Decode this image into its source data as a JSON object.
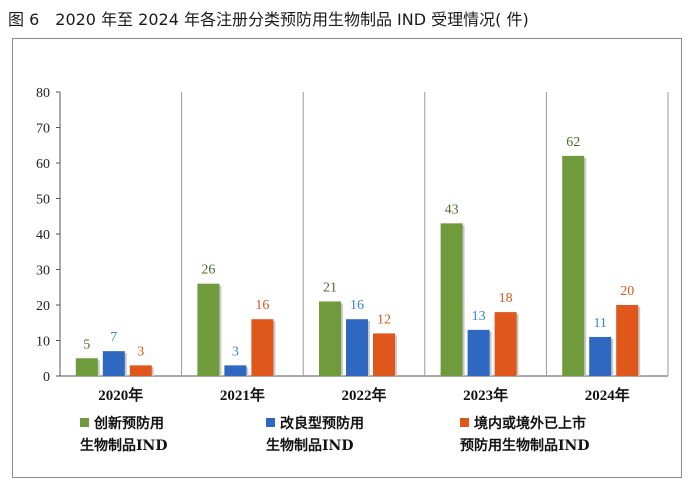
{
  "figure": {
    "title": "图 6　2020 年至 2024 年各注册分类预防用生物制品 IND 受理情况( 件)"
  },
  "chart_data": {
    "type": "bar",
    "categories": [
      "2020年",
      "2021年",
      "2022年",
      "2023年",
      "2024年"
    ],
    "series": [
      {
        "name": "创新预防用生物制品IND",
        "name_lines": [
          "创新预防用",
          "生物制品IND"
        ],
        "color": "#6f9b3c",
        "label_color": "#4d6b2a",
        "values": [
          5,
          26,
          21,
          43,
          62
        ]
      },
      {
        "name": "改良型预防用生物制品IND",
        "name_lines": [
          "改良型预防用",
          "生物制品IND"
        ],
        "color": "#2e68c0",
        "label_color": "#3a86cf",
        "values": [
          7,
          3,
          16,
          13,
          11
        ]
      },
      {
        "name": "境内或境外已上市预防用生物制品IND",
        "name_lines": [
          "境内或境外已上市",
          "预防用生物制品IND"
        ],
        "color": "#e0571b",
        "label_color": "#d9561c",
        "values": [
          3,
          16,
          12,
          18,
          20
        ]
      }
    ],
    "yticks": [
      0,
      10,
      20,
      30,
      40,
      50,
      60,
      70,
      80
    ],
    "ylim": [
      0,
      80
    ],
    "grid": false,
    "category_dividers": true,
    "legend_position": "bottom"
  }
}
